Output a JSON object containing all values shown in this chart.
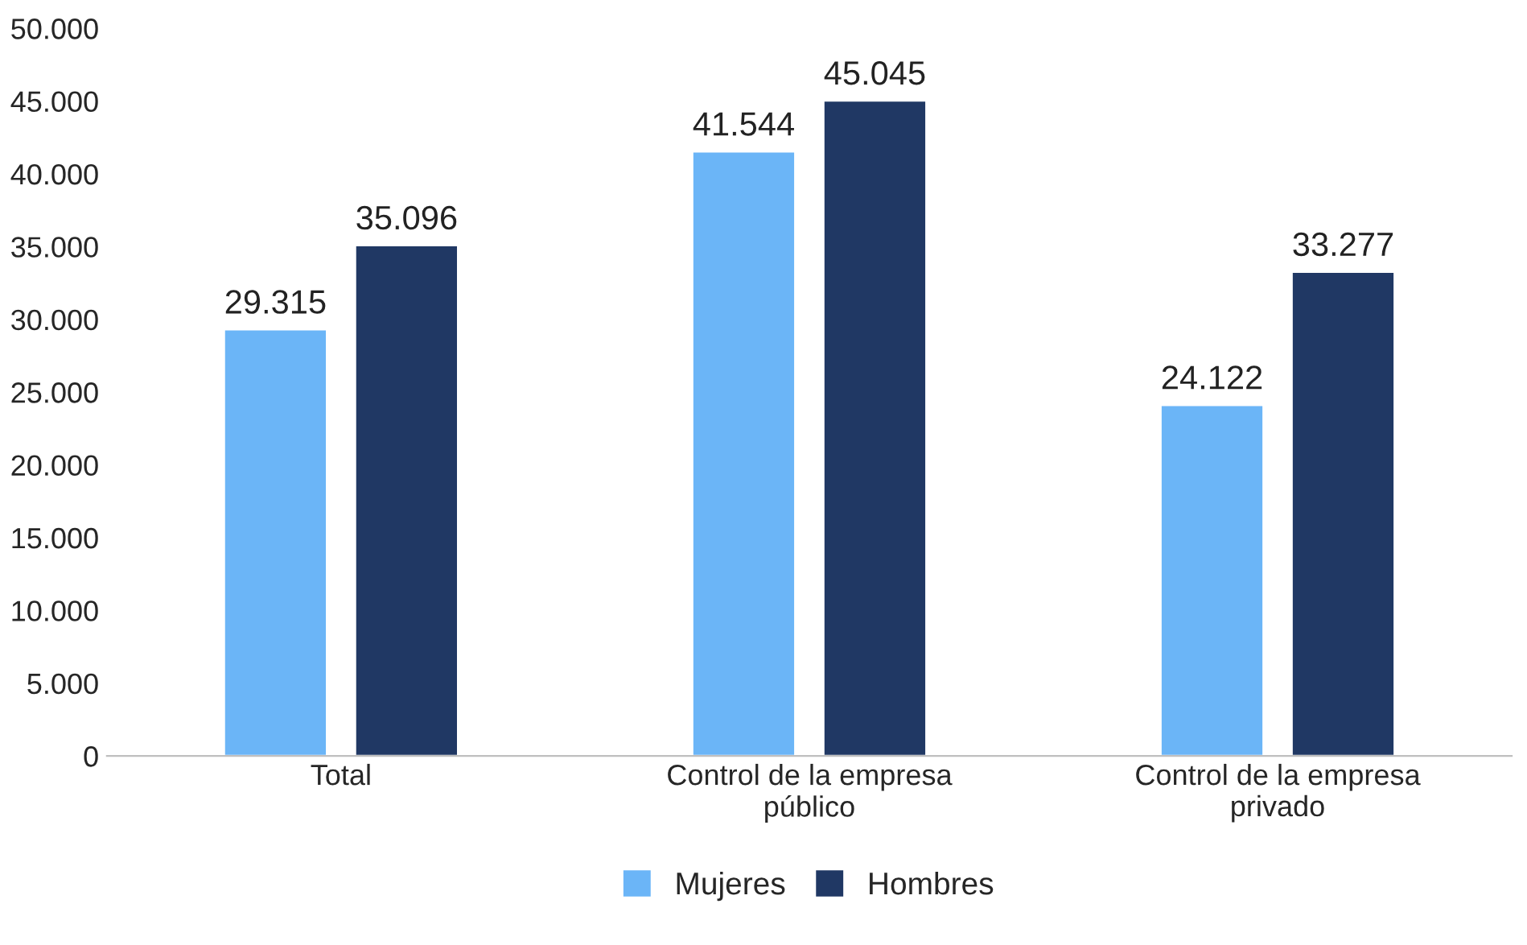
{
  "chart_data": {
    "type": "bar",
    "categories": [
      "Total",
      "Control de la empresa\npúblico",
      "Control de la empresa\nprivado"
    ],
    "series": [
      {
        "name": "Mujeres",
        "color": "#6bb5f7",
        "values": [
          29315,
          41544,
          24122
        ],
        "value_labels": [
          "29.315",
          "41.544",
          "24.122"
        ]
      },
      {
        "name": "Hombres",
        "color": "#203864",
        "values": [
          35096,
          45045,
          33277
        ],
        "value_labels": [
          "35.096",
          "45.045",
          "33.277"
        ]
      }
    ],
    "ylim": [
      0,
      50000
    ],
    "yticks": [
      0,
      {
        "value": 5000,
        "label": "5.000"
      },
      {
        "value": 10000,
        "label": "10.000"
      },
      {
        "value": 15000,
        "label": "15.000"
      },
      {
        "value": 20000,
        "label": "20.000"
      },
      {
        "value": 25000,
        "label": "25.000"
      },
      {
        "value": 30000,
        "label": "30.000"
      },
      {
        "value": 35000,
        "label": "35.000"
      },
      {
        "value": 40000,
        "label": "40.000"
      },
      {
        "value": 45000,
        "label": "45.000"
      },
      {
        "value": 50000,
        "label": "50.000"
      }
    ],
    "grid": false,
    "legend": "bottom"
  }
}
